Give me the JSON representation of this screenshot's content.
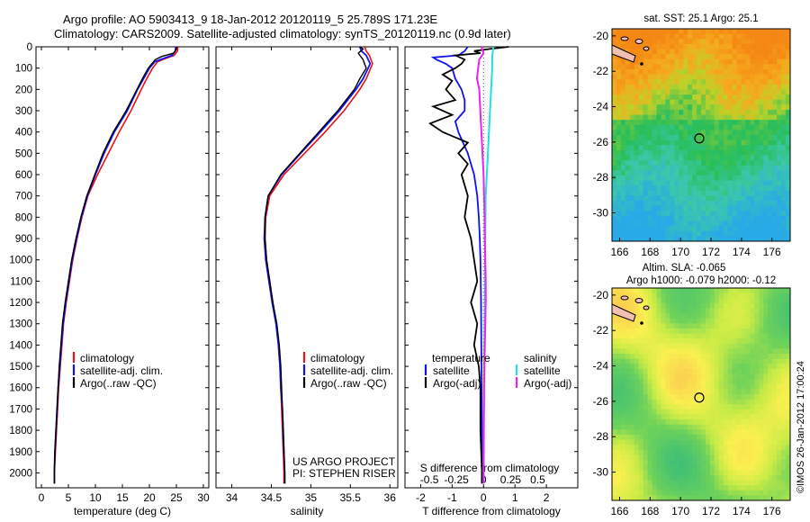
{
  "figure": {
    "title_line1": "Argo profile: AO 5903413_9 18-Jan-2012 20120119_5 25.789S 171.23E",
    "title_line2": "Climatology: CARS2009. Satellite-adjusted climatology: synTS_20120119.nc (0.9d later)",
    "side_stamp": "©IMOS 26-Jan-2012 17:00:24",
    "project_line1": "US ARGO PROJECT",
    "project_line2": "PI: STEPHEN RISER"
  },
  "colors": {
    "climatology": "#ee1111",
    "satellite": "#1111ee",
    "argo": "#000000",
    "salinity_sat": "#22e0e0",
    "salinity_argo": "#ee22ee"
  },
  "chart_data": [
    {
      "type": "line",
      "id": "temperature",
      "xlabel": "temperature (deg C)",
      "xlim": [
        -1,
        31
      ],
      "xticks": [
        0,
        5,
        10,
        15,
        20,
        25,
        30
      ],
      "ylim": [
        0,
        2070
      ],
      "yticks": [
        0,
        100,
        200,
        300,
        400,
        500,
        600,
        700,
        800,
        900,
        1000,
        1100,
        1200,
        1300,
        1400,
        1500,
        1600,
        1700,
        1800,
        1900,
        2000
      ],
      "legend": [
        "climatology",
        "satellite-adj. clim.",
        "Argo(..raw -QC)"
      ],
      "series": [
        {
          "name": "climatology",
          "y": [
            0,
            20,
            40,
            55,
            70,
            100,
            150,
            200,
            300,
            400,
            500,
            600,
            700,
            800,
            900,
            1000,
            1100,
            1200,
            1300,
            1400,
            1500,
            1600,
            1700,
            1800,
            1900,
            2000,
            2050
          ],
          "values": [
            25.3,
            25.2,
            24.6,
            23,
            21.5,
            20.6,
            19.5,
            18.5,
            16.6,
            14.4,
            12.4,
            10.4,
            8.6,
            7.5,
            6.6,
            5.8,
            5.2,
            4.6,
            4.1,
            3.8,
            3.5,
            3.2,
            3.0,
            2.8,
            2.6,
            2.4,
            2.4
          ]
        },
        {
          "name": "satellite-adj. clim.",
          "y": [
            0,
            20,
            40,
            55,
            70,
            100,
            150,
            200,
            300,
            400,
            500,
            600,
            700,
            800,
            900,
            1000,
            1100,
            1200,
            1300,
            1400,
            1500,
            1600,
            1700,
            1800,
            1900,
            2000,
            2050
          ],
          "values": [
            24.9,
            24.8,
            24.2,
            22.6,
            21,
            20,
            18.9,
            17.8,
            15.9,
            13.5,
            11.6,
            10,
            8.5,
            7.4,
            6.5,
            5.7,
            5.1,
            4.5,
            4.0,
            3.7,
            3.4,
            3.1,
            2.9,
            2.7,
            2.5,
            2.4,
            2.4
          ]
        },
        {
          "name": "Argo(..raw -QC)",
          "y": [
            0,
            10,
            30,
            45,
            60,
            100,
            150,
            200,
            300,
            400,
            500,
            600,
            700,
            800,
            900,
            1000,
            1100,
            1200,
            1300,
            1400,
            1500,
            1600,
            1700,
            1800,
            1900,
            2000,
            2050
          ],
          "values": [
            25.1,
            25.0,
            24.5,
            22.3,
            21.1,
            19.8,
            18.7,
            17.7,
            15.7,
            13.3,
            11.4,
            9.9,
            8.4,
            7.3,
            6.4,
            5.6,
            5.0,
            4.4,
            3.9,
            3.6,
            3.3,
            3.1,
            2.9,
            2.7,
            2.5,
            2.4,
            2.4
          ]
        }
      ]
    },
    {
      "type": "line",
      "id": "salinity",
      "xlabel": "salinity",
      "xlim": [
        33.8,
        36.1
      ],
      "xticks": [
        34,
        34.5,
        35,
        35.5,
        36
      ],
      "ylim": [
        0,
        2070
      ],
      "legend": [
        "climatology",
        "satellite-adj. clim.",
        "Argo(..raw -QC)"
      ],
      "series": [
        {
          "name": "climatology",
          "y": [
            0,
            20,
            40,
            80,
            150,
            200,
            300,
            400,
            500,
            600,
            700,
            800,
            900,
            1000,
            1100,
            1200,
            1300,
            1400,
            1500,
            1600,
            1700,
            1800,
            1900,
            2000,
            2050
          ],
          "values": [
            35.68,
            35.7,
            35.74,
            35.78,
            35.7,
            35.62,
            35.42,
            35.18,
            34.92,
            34.66,
            34.48,
            34.43,
            34.42,
            34.44,
            34.48,
            34.52,
            34.56,
            34.59,
            34.61,
            34.62,
            34.63,
            34.64,
            34.65,
            34.66,
            34.66
          ]
        },
        {
          "name": "satellite-adj. clim.",
          "y": [
            0,
            20,
            40,
            80,
            150,
            200,
            300,
            400,
            500,
            600,
            700,
            800,
            900,
            1000,
            1100,
            1200,
            1300,
            1400,
            1500,
            1600,
            1700,
            1800,
            1900,
            2000,
            2050
          ],
          "values": [
            35.62,
            35.64,
            35.7,
            35.75,
            35.66,
            35.57,
            35.36,
            35.12,
            34.87,
            34.63,
            34.46,
            34.42,
            34.41,
            34.43,
            34.47,
            34.51,
            34.56,
            34.59,
            34.61,
            34.62,
            34.64,
            34.65,
            34.66,
            34.67,
            34.67
          ]
        },
        {
          "name": "Argo(..raw -QC)",
          "y": [
            0,
            10,
            30,
            60,
            100,
            150,
            200,
            300,
            400,
            500,
            600,
            700,
            800,
            900,
            1000,
            1100,
            1200,
            1300,
            1400,
            1500,
            1600,
            1700,
            1800,
            1900,
            2000,
            2050
          ],
          "values": [
            35.62,
            35.66,
            35.6,
            35.66,
            35.7,
            35.62,
            35.55,
            35.34,
            35.1,
            34.86,
            34.62,
            34.46,
            34.42,
            34.42,
            34.44,
            34.48,
            34.52,
            34.57,
            34.6,
            34.62,
            34.63,
            34.64,
            34.65,
            34.66,
            34.67,
            34.67
          ]
        }
      ]
    },
    {
      "type": "line",
      "id": "difference",
      "xlabel": "T difference from climatology",
      "xlabel_top": "S difference from climatology",
      "xlim": [
        -2.5,
        3
      ],
      "xticks": [
        -2,
        -1,
        0,
        1,
        2
      ],
      "sticks_values": [
        -0.5,
        -0.25,
        0,
        0.25,
        0.5
      ],
      "sticks_labels": [
        "-0.5",
        "-0.25",
        "0",
        "0.25",
        "0.5"
      ],
      "ylim": [
        0,
        2070
      ],
      "legend_left_title": "temperature",
      "legend_right_title": "salinity",
      "legend_left": [
        "satellite",
        "Argo(-adj)"
      ],
      "legend_right": [
        "satellite",
        "Argo(-adj)"
      ],
      "series": [
        {
          "name": "temperature satellite",
          "y": [
            0,
            20,
            40,
            50,
            60,
            80,
            100,
            150,
            200,
            250,
            300,
            350,
            400,
            500,
            600,
            700,
            800,
            900,
            1000,
            1200,
            1400,
            1600,
            1800,
            2000,
            2050
          ],
          "values": [
            -0.5,
            -0.6,
            -0.8,
            -1.6,
            -1.5,
            -1.2,
            -1.0,
            -0.9,
            -0.7,
            -0.6,
            -0.6,
            -0.9,
            -0.8,
            -0.5,
            -0.3,
            -0.2,
            -0.15,
            -0.12,
            -0.1,
            -0.08,
            -0.07,
            -0.06,
            -0.05,
            -0.05,
            -0.05
          ]
        },
        {
          "name": "temperature Argo(-adj)",
          "y": [
            0,
            10,
            20,
            30,
            40,
            60,
            80,
            100,
            130,
            160,
            200,
            250,
            280,
            320,
            360,
            400,
            450,
            500,
            550,
            600,
            700,
            800,
            900,
            1000,
            1100,
            1200,
            1300,
            1400,
            1500,
            1600,
            1800,
            2000,
            2050
          ],
          "values": [
            0.8,
            0.2,
            -0.3,
            -0.1,
            -0.9,
            -0.6,
            -0.7,
            -0.9,
            -1.3,
            -1.0,
            -1.2,
            -0.9,
            -1.6,
            -1.0,
            -1.7,
            -1.3,
            -0.5,
            -0.8,
            -0.5,
            -0.7,
            -0.5,
            -0.6,
            -0.4,
            -0.3,
            -0.2,
            -0.4,
            -0.2,
            -0.3,
            -0.15,
            -0.1,
            -0.1,
            -0.05,
            -0.05
          ]
        },
        {
          "name": "salinity satellite",
          "y": [
            0,
            50,
            100,
            200,
            300,
            400,
            500,
            600,
            700,
            800,
            900,
            1000,
            1100,
            1200,
            1300,
            1400,
            1500,
            1600,
            1800,
            2000,
            2050
          ],
          "values": [
            0.09,
            0.08,
            0.08,
            0.07,
            0.06,
            0.05,
            0.04,
            0.03,
            0.02,
            0.018,
            0.016,
            0.014,
            0.013,
            0.012,
            0.01,
            0.008,
            0.006,
            0.004,
            0.002,
            0.0,
            0.0
          ]
        },
        {
          "name": "salinity Argo(-adj)",
          "y": [
            0,
            30,
            60,
            100,
            150,
            200,
            300,
            400,
            500,
            600,
            700,
            800,
            900,
            1000,
            1100,
            1200,
            1300,
            1400,
            1500,
            1600,
            1800,
            2000,
            2050
          ],
          "values": [
            -0.02,
            0.0,
            -0.04,
            -0.05,
            -0.06,
            -0.04,
            -0.03,
            -0.02,
            -0.01,
            0.0,
            0.005,
            0.01,
            0.012,
            0.016,
            0.02,
            0.02,
            0.016,
            0.012,
            0.008,
            0.005,
            0.003,
            0.001,
            0.0
          ]
        }
      ]
    },
    {
      "type": "heatmap",
      "id": "sst_map",
      "title": "sat. SST: 25.1  Argo: 25.1",
      "xticks": [
        "166",
        "168",
        "170",
        "172",
        "174",
        "176"
      ],
      "yticks": [
        "-20",
        "-22",
        "-24",
        "-26",
        "-28",
        "-30"
      ],
      "xlim": [
        165.5,
        177.2
      ],
      "ylim": [
        -31.6,
        -19.6
      ],
      "marker": {
        "lon": 171.23,
        "lat": -25.79
      }
    },
    {
      "type": "heatmap",
      "id": "sla_map",
      "title_line1": "Altim. SLA: -0.065",
      "title_line2": "Argo h1000: -0.079  h2000: -0.12",
      "xticks": [
        "166",
        "168",
        "170",
        "172",
        "174",
        "176"
      ],
      "yticks": [
        "-20",
        "-22",
        "-24",
        "-26",
        "-28",
        "-30"
      ],
      "xlim": [
        165.5,
        177.2
      ],
      "ylim": [
        -31.6,
        -19.6
      ],
      "marker": {
        "lon": 171.23,
        "lat": -25.79
      }
    }
  ]
}
